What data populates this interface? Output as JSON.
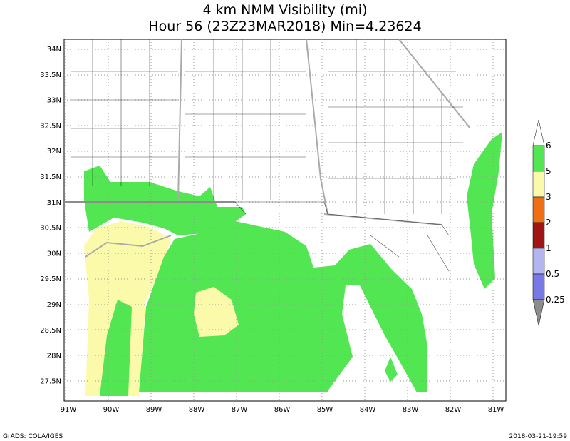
{
  "header": {
    "title": "4 km NMM Visibility (mi)",
    "subtitle": "Hour 56 (23Z23MAR2018) Min=4.23624"
  },
  "map": {
    "lat_labels": [
      "34N",
      "33.5N",
      "33N",
      "32.5N",
      "32N",
      "31.5N",
      "31N",
      "30.5N",
      "30N",
      "29.5N",
      "29N",
      "28.5N",
      "28N",
      "27.5N"
    ],
    "lon_labels": [
      "91W",
      "90W",
      "89W",
      "88W",
      "87W",
      "86W",
      "85W",
      "84W",
      "83W",
      "82W",
      "81W"
    ]
  },
  "colorbar": {
    "labels": [
      "6",
      "5",
      "3",
      "2",
      "1",
      "0.5",
      "0.25"
    ],
    "colors": [
      "#ffffff",
      "#52e652",
      "#fafaaa",
      "#f06e14",
      "#a01414",
      "#b4b4f0",
      "#7878e6",
      "#8c8c8c"
    ]
  },
  "footer": {
    "left": "GrADS: COLA/IGES",
    "right": "2018-03-21-19:59"
  }
}
